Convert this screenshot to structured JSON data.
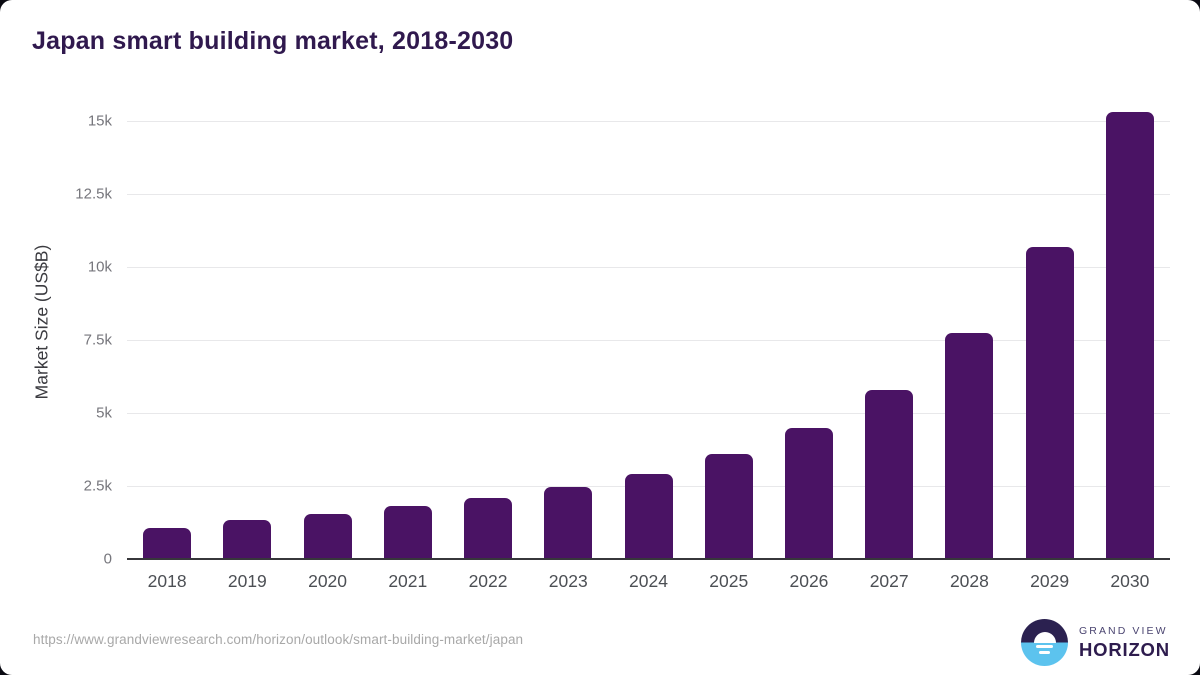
{
  "chart_data": {
    "type": "bar",
    "title": "Japan smart building market, 2018-2030",
    "xlabel": "",
    "ylabel": "Market Size (US$B)",
    "categories": [
      "2018",
      "2019",
      "2020",
      "2021",
      "2022",
      "2023",
      "2024",
      "2025",
      "2026",
      "2027",
      "2028",
      "2029",
      "2030"
    ],
    "values": [
      1050,
      1350,
      1550,
      1800,
      2100,
      2450,
      2900,
      3600,
      4500,
      5800,
      7750,
      10700,
      15300
    ],
    "ylim": [
      0,
      15900
    ],
    "yticks": [
      {
        "label": "0",
        "value": 0
      },
      {
        "label": "2.5k",
        "value": 2500
      },
      {
        "label": "5k",
        "value": 5000
      },
      {
        "label": "7.5k",
        "value": 7500
      },
      {
        "label": "10k",
        "value": 10000
      },
      {
        "label": "12.5k",
        "value": 12500
      },
      {
        "label": "15k",
        "value": 15000
      }
    ],
    "grid": true,
    "legend": "none",
    "bar_color": "#4a1364"
  },
  "colors": {
    "title": "#30194e",
    "bar": "#4a1364",
    "gridline": "#e8e8ea",
    "axis_line": "#37373b",
    "y_tick": "#76767c",
    "x_tick": "#4c4f54",
    "url_text": "#a8a8a8",
    "logo_navy": "#2b2150",
    "logo_blue": "#5cc3ee"
  },
  "footer": {
    "source_url": "https://www.grandviewresearch.com/horizon/outlook/smart-building-market/japan",
    "logo": {
      "line1": "GRAND VIEW",
      "line2": "HORIZON"
    }
  }
}
